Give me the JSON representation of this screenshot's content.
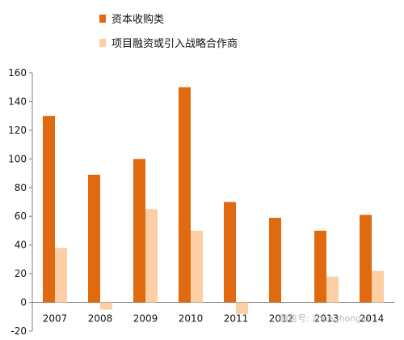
{
  "chart_data": {
    "type": "bar",
    "title": "",
    "xlabel": "",
    "ylabel": "",
    "categories": [
      "2007",
      "2008",
      "2009",
      "2010",
      "2011",
      "2012",
      "2013",
      "2014"
    ],
    "series": [
      {
        "name": "资本收购类",
        "values": [
          130,
          89,
          100,
          150,
          70,
          59,
          50,
          61
        ],
        "color": "#e06a10"
      },
      {
        "name": "项目融资或引入战略合作商",
        "values": [
          38,
          -5,
          65,
          50,
          -8,
          0,
          18,
          22
        ],
        "color": "#fccfa4"
      }
    ],
    "ylim": [
      -20,
      160
    ],
    "yticks": [
      -20,
      0,
      20,
      40,
      60,
      80,
      100,
      120,
      140,
      160
    ],
    "grid": false,
    "legend_position": "top"
  },
  "watermark": {
    "text": "微信号: zhonghongid"
  }
}
